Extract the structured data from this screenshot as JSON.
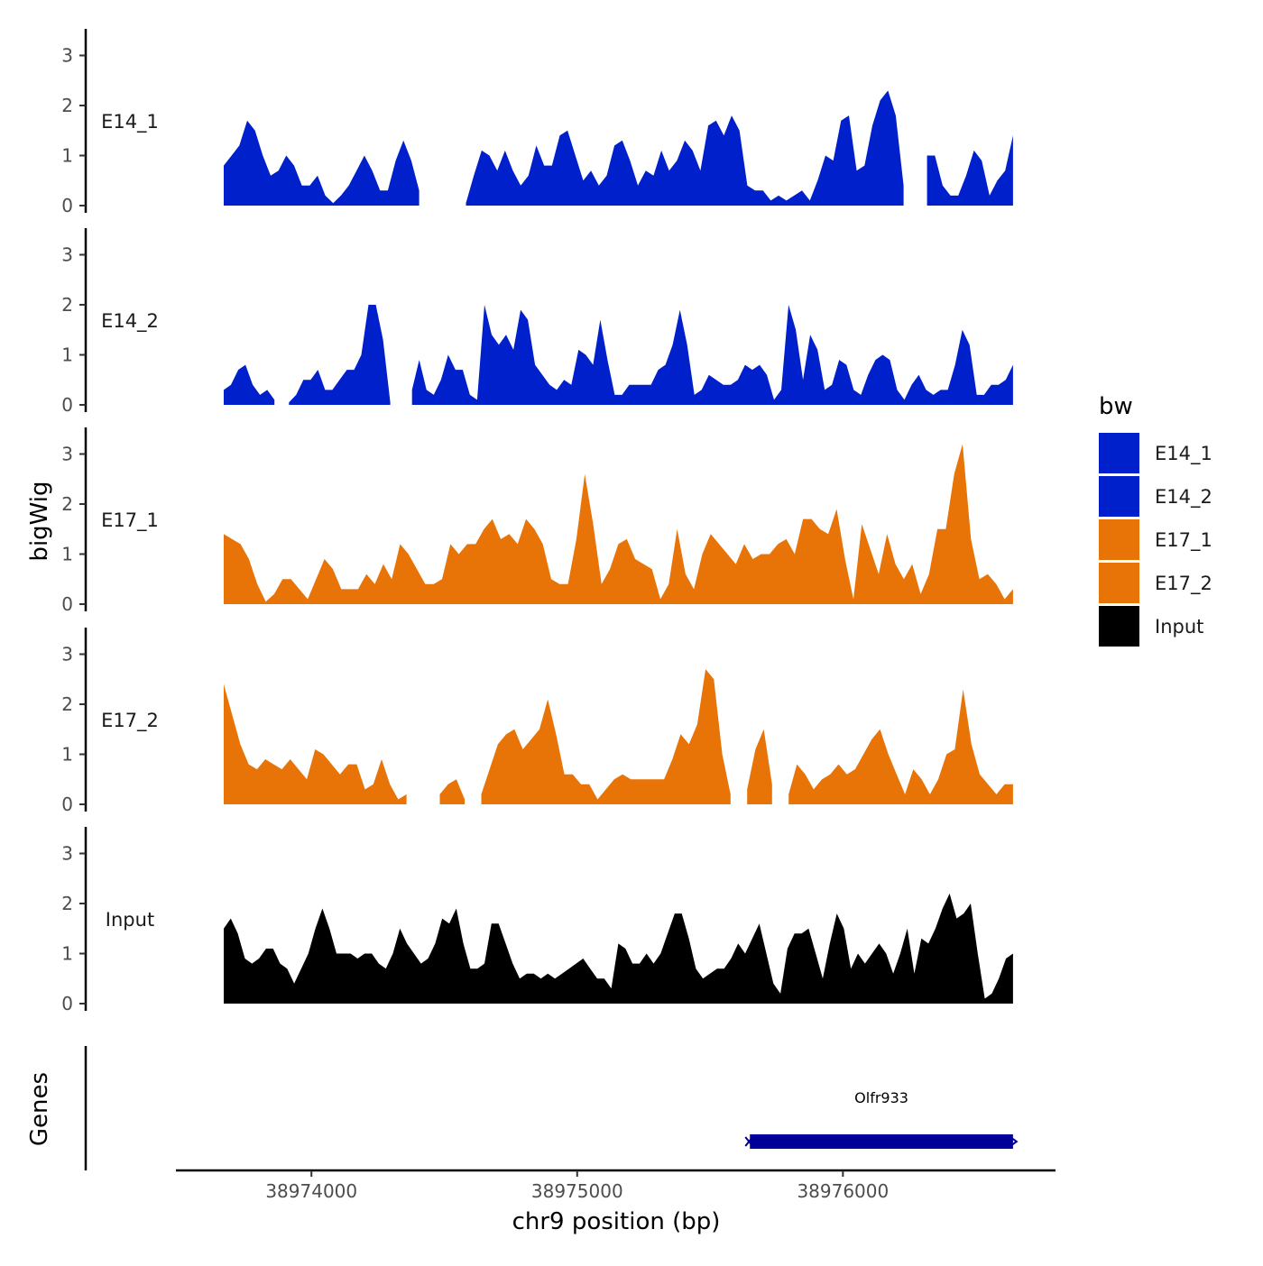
{
  "chart_data": {
    "type": "area",
    "chromosome": "chr9",
    "xlabel": "chr9 position (bp)",
    "ylabel": "bigWig",
    "genes_label": "Genes",
    "x_range": [
      38973670,
      38976640
    ],
    "x_axis_limits": [
      38973490,
      38976800
    ],
    "x_ticks": [
      38974000,
      38975000,
      38976000
    ],
    "x_tick_labels": [
      "38974000",
      "38975000",
      "38976000"
    ],
    "ylim": [
      0,
      3.5
    ],
    "y_ticks": [
      0,
      1,
      2,
      3
    ],
    "y_tick_labels": [
      "0",
      "1",
      "2",
      "3"
    ],
    "legend": {
      "title": "bw",
      "entries": [
        {
          "name": "E14_1",
          "color": "#0020CC"
        },
        {
          "name": "E14_2",
          "color": "#0020CC"
        },
        {
          "name": "E17_1",
          "color": "#E87408"
        },
        {
          "name": "E17_2",
          "color": "#E87408"
        },
        {
          "name": "Input",
          "color": "#000000"
        }
      ]
    },
    "series": [
      {
        "name": "E14_1",
        "label": "E14_1",
        "color": "#0020CC",
        "values": [
          0.8,
          1.0,
          1.2,
          1.7,
          1.5,
          1.0,
          0.6,
          0.7,
          1.0,
          0.8,
          0.4,
          0.4,
          0.6,
          0.2,
          0.05,
          0.2,
          0.4,
          0.7,
          1.0,
          0.7,
          0.3,
          0.3,
          0.9,
          1.3,
          0.9,
          0.3,
          null,
          null,
          null,
          null,
          null,
          0.05,
          0.6,
          1.1,
          1.0,
          0.7,
          1.1,
          0.7,
          0.4,
          0.6,
          1.2,
          0.8,
          0.8,
          1.4,
          1.5,
          1.0,
          0.5,
          0.7,
          0.4,
          0.6,
          1.2,
          1.3,
          0.9,
          0.4,
          0.7,
          0.6,
          1.1,
          0.7,
          0.9,
          1.3,
          1.1,
          0.7,
          1.6,
          1.7,
          1.4,
          1.8,
          1.5,
          0.4,
          0.3,
          0.3,
          0.1,
          0.2,
          0.1,
          0.2,
          0.3,
          0.1,
          0.5,
          1.0,
          0.9,
          1.7,
          1.8,
          0.7,
          0.8,
          1.6,
          2.1,
          2.3,
          1.8,
          0.4,
          null,
          null,
          1.0,
          1.0,
          0.4,
          0.2,
          0.2,
          0.6,
          1.1,
          0.9,
          0.2,
          0.5,
          0.7,
          1.4
        ]
      },
      {
        "name": "E14_2",
        "label": "E14_2",
        "color": "#0020CC",
        "values": [
          0.3,
          0.4,
          0.7,
          0.8,
          0.4,
          0.2,
          0.3,
          0.1,
          null,
          0.05,
          0.2,
          0.5,
          0.5,
          0.7,
          0.3,
          0.3,
          0.5,
          0.7,
          0.7,
          1.0,
          2.0,
          2.0,
          1.3,
          0.05,
          null,
          null,
          0.3,
          0.9,
          0.3,
          0.2,
          0.5,
          1.0,
          0.7,
          0.7,
          0.2,
          0.1,
          2.0,
          1.4,
          1.2,
          1.4,
          1.1,
          1.9,
          1.7,
          0.8,
          0.6,
          0.4,
          0.3,
          0.5,
          0.4,
          1.1,
          1.0,
          0.8,
          1.7,
          0.9,
          0.2,
          0.2,
          0.4,
          0.4,
          0.4,
          0.4,
          0.7,
          0.8,
          1.2,
          1.9,
          1.2,
          0.2,
          0.3,
          0.6,
          0.5,
          0.4,
          0.4,
          0.5,
          0.8,
          0.7,
          0.8,
          0.6,
          0.1,
          0.3,
          2.0,
          1.5,
          0.5,
          1.4,
          1.1,
          0.3,
          0.4,
          0.9,
          0.8,
          0.3,
          0.2,
          0.6,
          0.9,
          1.0,
          0.9,
          0.3,
          0.1,
          0.4,
          0.6,
          0.3,
          0.2,
          0.3,
          0.3,
          0.8,
          1.5,
          1.2,
          0.2,
          0.2,
          0.4,
          0.4,
          0.5,
          0.8
        ]
      },
      {
        "name": "E17_1",
        "label": "E17_1",
        "color": "#E87408",
        "values": [
          1.4,
          1.3,
          1.2,
          0.9,
          0.4,
          0.05,
          0.2,
          0.5,
          0.5,
          0.3,
          0.1,
          0.5,
          0.9,
          0.7,
          0.3,
          0.3,
          0.3,
          0.6,
          0.4,
          0.8,
          0.5,
          1.2,
          1.0,
          0.7,
          0.4,
          0.4,
          0.5,
          1.2,
          1.0,
          1.2,
          1.2,
          1.5,
          1.7,
          1.3,
          1.4,
          1.2,
          1.7,
          1.5,
          1.2,
          0.5,
          0.4,
          0.4,
          1.3,
          2.6,
          1.6,
          0.4,
          0.7,
          1.2,
          1.3,
          0.9,
          0.8,
          0.7,
          0.1,
          0.4,
          1.5,
          0.6,
          0.3,
          1.0,
          1.4,
          1.2,
          1.0,
          0.8,
          1.2,
          0.9,
          1.0,
          1.0,
          1.2,
          1.3,
          1.0,
          1.7,
          1.7,
          1.5,
          1.4,
          1.9,
          0.9,
          0.1,
          1.6,
          1.1,
          0.6,
          1.4,
          0.8,
          0.5,
          0.8,
          0.2,
          0.6,
          1.5,
          1.5,
          2.6,
          3.2,
          1.3,
          0.5,
          0.6,
          0.4,
          0.1,
          0.3
        ]
      },
      {
        "name": "E17_2",
        "label": "E17_2",
        "color": "#E87408",
        "values": [
          2.4,
          1.8,
          1.2,
          0.8,
          0.7,
          0.9,
          0.8,
          0.7,
          0.9,
          0.7,
          0.5,
          1.1,
          1.0,
          0.8,
          0.6,
          0.8,
          0.8,
          0.3,
          0.4,
          0.9,
          0.4,
          0.1,
          0.2,
          null,
          null,
          null,
          0.2,
          0.4,
          0.5,
          0.1,
          null,
          0.2,
          0.7,
          1.2,
          1.4,
          1.5,
          1.1,
          1.3,
          1.5,
          2.1,
          1.4,
          0.6,
          0.6,
          0.4,
          0.4,
          0.1,
          0.3,
          0.5,
          0.6,
          0.5,
          0.5,
          0.5,
          0.5,
          0.5,
          0.9,
          1.4,
          1.2,
          1.6,
          2.7,
          2.5,
          1.0,
          0.2,
          null,
          0.3,
          1.1,
          1.5,
          0.4,
          null,
          0.2,
          0.8,
          0.6,
          0.3,
          0.5,
          0.6,
          0.8,
          0.6,
          0.7,
          1.0,
          1.3,
          1.5,
          1.0,
          0.6,
          0.2,
          0.7,
          0.5,
          0.2,
          0.5,
          1.0,
          1.1,
          2.3,
          1.2,
          0.6,
          0.4,
          0.2,
          0.4,
          0.4
        ]
      },
      {
        "name": "Input",
        "label": "Input",
        "color": "#000000",
        "values": [
          1.5,
          1.7,
          1.4,
          0.9,
          0.8,
          0.9,
          1.1,
          1.1,
          0.8,
          0.7,
          0.4,
          0.7,
          1.0,
          1.5,
          1.9,
          1.5,
          1.0,
          1.0,
          1.0,
          0.9,
          1.0,
          1.0,
          0.8,
          0.7,
          1.0,
          1.5,
          1.2,
          1.0,
          0.8,
          0.9,
          1.2,
          1.7,
          1.6,
          1.9,
          1.2,
          0.7,
          0.7,
          0.8,
          1.6,
          1.6,
          1.2,
          0.8,
          0.5,
          0.6,
          0.6,
          0.5,
          0.6,
          0.5,
          0.6,
          0.7,
          0.8,
          0.9,
          0.7,
          0.5,
          0.5,
          0.3,
          1.2,
          1.1,
          0.8,
          0.8,
          1.0,
          0.8,
          1.0,
          1.4,
          1.8,
          1.8,
          1.3,
          0.7,
          0.5,
          0.6,
          0.7,
          0.7,
          0.9,
          1.2,
          1.0,
          1.3,
          1.6,
          1.0,
          0.4,
          0.2,
          1.1,
          1.4,
          1.4,
          1.5,
          1.0,
          0.5,
          1.2,
          1.8,
          1.5,
          0.7,
          1.0,
          0.8,
          1.0,
          1.2,
          1.0,
          0.6,
          1.0,
          1.5,
          0.6,
          1.3,
          1.2,
          1.5,
          1.9,
          2.2,
          1.7,
          1.8,
          2.0,
          1.0,
          0.1,
          0.2,
          0.5,
          0.9,
          1.0
        ]
      }
    ],
    "genes": [
      {
        "name": "Olfr933",
        "start": 38975650,
        "end": 38976640,
        "strand": "-",
        "color": "#000099"
      }
    ]
  }
}
